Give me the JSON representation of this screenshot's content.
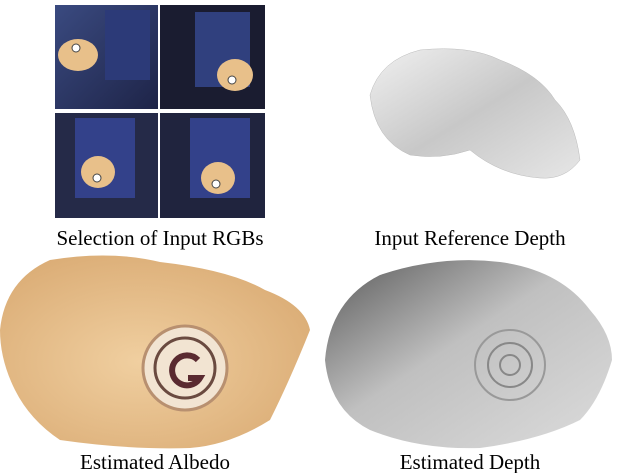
{
  "panels": [
    {
      "caption": "Selection of Input RGBs"
    },
    {
      "caption": "Input Reference Depth"
    },
    {
      "caption": "Estimated Albedo"
    },
    {
      "caption": "Estimated Depth"
    }
  ]
}
